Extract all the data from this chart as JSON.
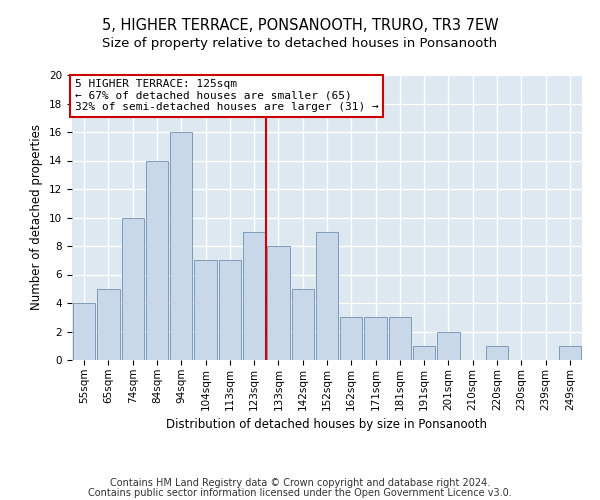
{
  "title1": "5, HIGHER TERRACE, PONSANOOTH, TRURO, TR3 7EW",
  "title2": "Size of property relative to detached houses in Ponsanooth",
  "xlabel": "Distribution of detached houses by size in Ponsanooth",
  "ylabel": "Number of detached properties",
  "categories": [
    "55sqm",
    "65sqm",
    "74sqm",
    "84sqm",
    "94sqm",
    "104sqm",
    "113sqm",
    "123sqm",
    "133sqm",
    "142sqm",
    "152sqm",
    "162sqm",
    "171sqm",
    "181sqm",
    "191sqm",
    "201sqm",
    "210sqm",
    "220sqm",
    "230sqm",
    "239sqm",
    "249sqm"
  ],
  "values": [
    4,
    5,
    10,
    14,
    16,
    7,
    7,
    9,
    8,
    5,
    9,
    3,
    3,
    3,
    1,
    2,
    0,
    1,
    0,
    0,
    1
  ],
  "bar_color": "#c8d8e8",
  "bar_edge_color": "#7090b0",
  "vline_x": 7.5,
  "vline_color": "#cc0000",
  "annotation_lines": [
    "5 HIGHER TERRACE: 125sqm",
    "← 67% of detached houses are smaller (65)",
    "32% of semi-detached houses are larger (31) →"
  ],
  "annotation_box_color": "#cc0000",
  "ylim": [
    0,
    20
  ],
  "yticks": [
    0,
    2,
    4,
    6,
    8,
    10,
    12,
    14,
    16,
    18,
    20
  ],
  "footer1": "Contains HM Land Registry data © Crown copyright and database right 2024.",
  "footer2": "Contains public sector information licensed under the Open Government Licence v3.0.",
  "background_color": "#dde8f0",
  "grid_color": "#ffffff",
  "title_fontsize": 10.5,
  "subtitle_fontsize": 9.5,
  "axis_label_fontsize": 8.5,
  "tick_fontsize": 7.5,
  "footer_fontsize": 7.0,
  "annot_fontsize": 8.0
}
